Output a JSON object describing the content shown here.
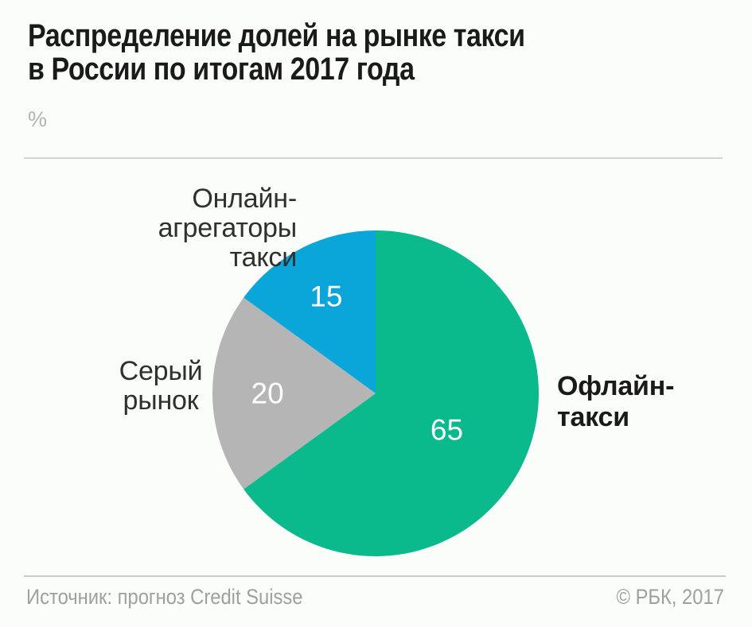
{
  "header": {
    "title_line1": "Распределение долей на рынке такси",
    "title_line2": "в России по итогам 2017 года",
    "unit": "%"
  },
  "chart_data": {
    "type": "pie",
    "title": "Распределение долей на рынке такси в России по итогам 2017 года",
    "unit": "%",
    "start_angle_deg": 0,
    "direction": "clockwise",
    "value_labels_inside": true,
    "legend_position": "outside-callouts",
    "segments": [
      {
        "name": "offline-taxi",
        "label": "Офлайн-такси",
        "label_lines": [
          "Офлайн-",
          "такси"
        ],
        "value": 65,
        "color": "#0ABA8C"
      },
      {
        "name": "gray-market",
        "label": "Серый рынок",
        "label_lines": [
          "Серый",
          "рынок"
        ],
        "value": 20,
        "color": "#B5B5B5"
      },
      {
        "name": "online-aggregators",
        "label": "Онлайн-агрегаторы такси",
        "label_lines": [
          "Онлайн-",
          "агрегаторы такси"
        ],
        "value": 15,
        "color": "#0AA5D9"
      }
    ]
  },
  "footer": {
    "source": "Источник: прогноз Credit Suisse",
    "copyright": "© РБК, 2017"
  }
}
